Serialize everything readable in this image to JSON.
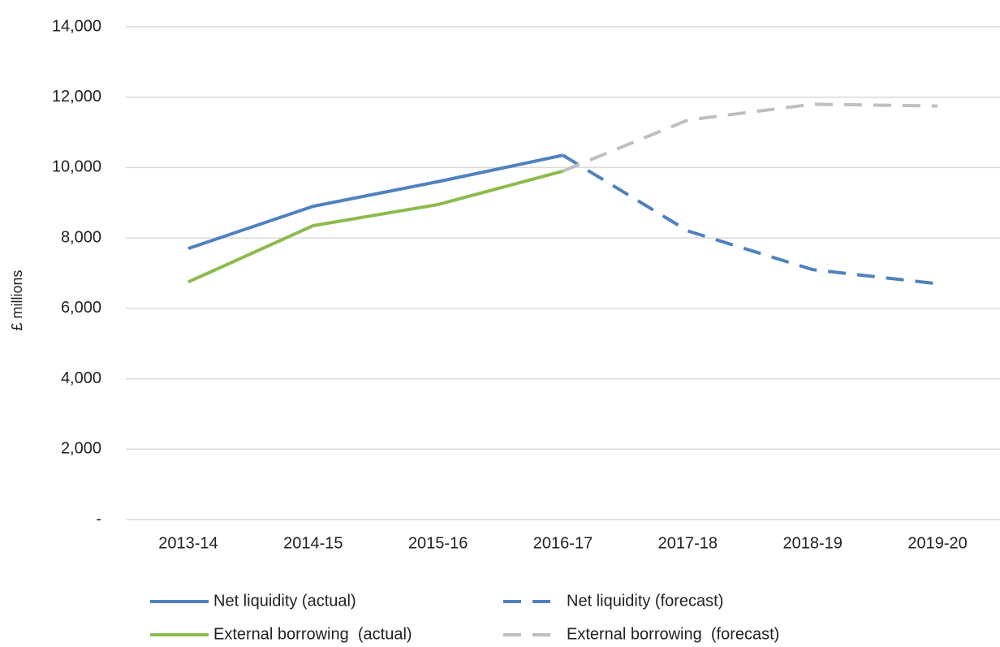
{
  "chart_data": {
    "type": "line",
    "y_label": "£ millions",
    "categories": [
      "2013-14",
      "2014-15",
      "2015-16",
      "2016-17",
      "2017-18",
      "2018-19",
      "2019-20"
    ],
    "series": [
      {
        "name": "Net liquidity (actual)",
        "color": "#4f81bd",
        "dashed": false,
        "values": [
          7700,
          8900,
          9600,
          10350,
          null,
          null,
          null
        ]
      },
      {
        "name": "Net liquidity (forecast)",
        "color": "#4f81bd",
        "dashed": true,
        "values": [
          null,
          null,
          null,
          10350,
          8200,
          7100,
          6700
        ]
      },
      {
        "name": "External borrowing  (actual)",
        "color": "#8cbb4d",
        "dashed": false,
        "values": [
          6750,
          8350,
          8950,
          9900,
          null,
          null,
          null
        ]
      },
      {
        "name": "External borrowing  (forecast)",
        "color": "#bfbfbf",
        "dashed": true,
        "values": [
          null,
          null,
          null,
          9900,
          11350,
          11800,
          11750
        ]
      }
    ],
    "ylim": [
      0,
      14000
    ],
    "yticks": [
      {
        "value": 0,
        "label": "-"
      },
      {
        "value": 2000,
        "label": "2,000"
      },
      {
        "value": 4000,
        "label": "4,000"
      },
      {
        "value": 6000,
        "label": "6,000"
      },
      {
        "value": 8000,
        "label": "8,000"
      },
      {
        "value": 10000,
        "label": "10,000"
      },
      {
        "value": 12000,
        "label": "12,000"
      },
      {
        "value": 14000,
        "label": "14,000"
      }
    ],
    "grid": true
  }
}
